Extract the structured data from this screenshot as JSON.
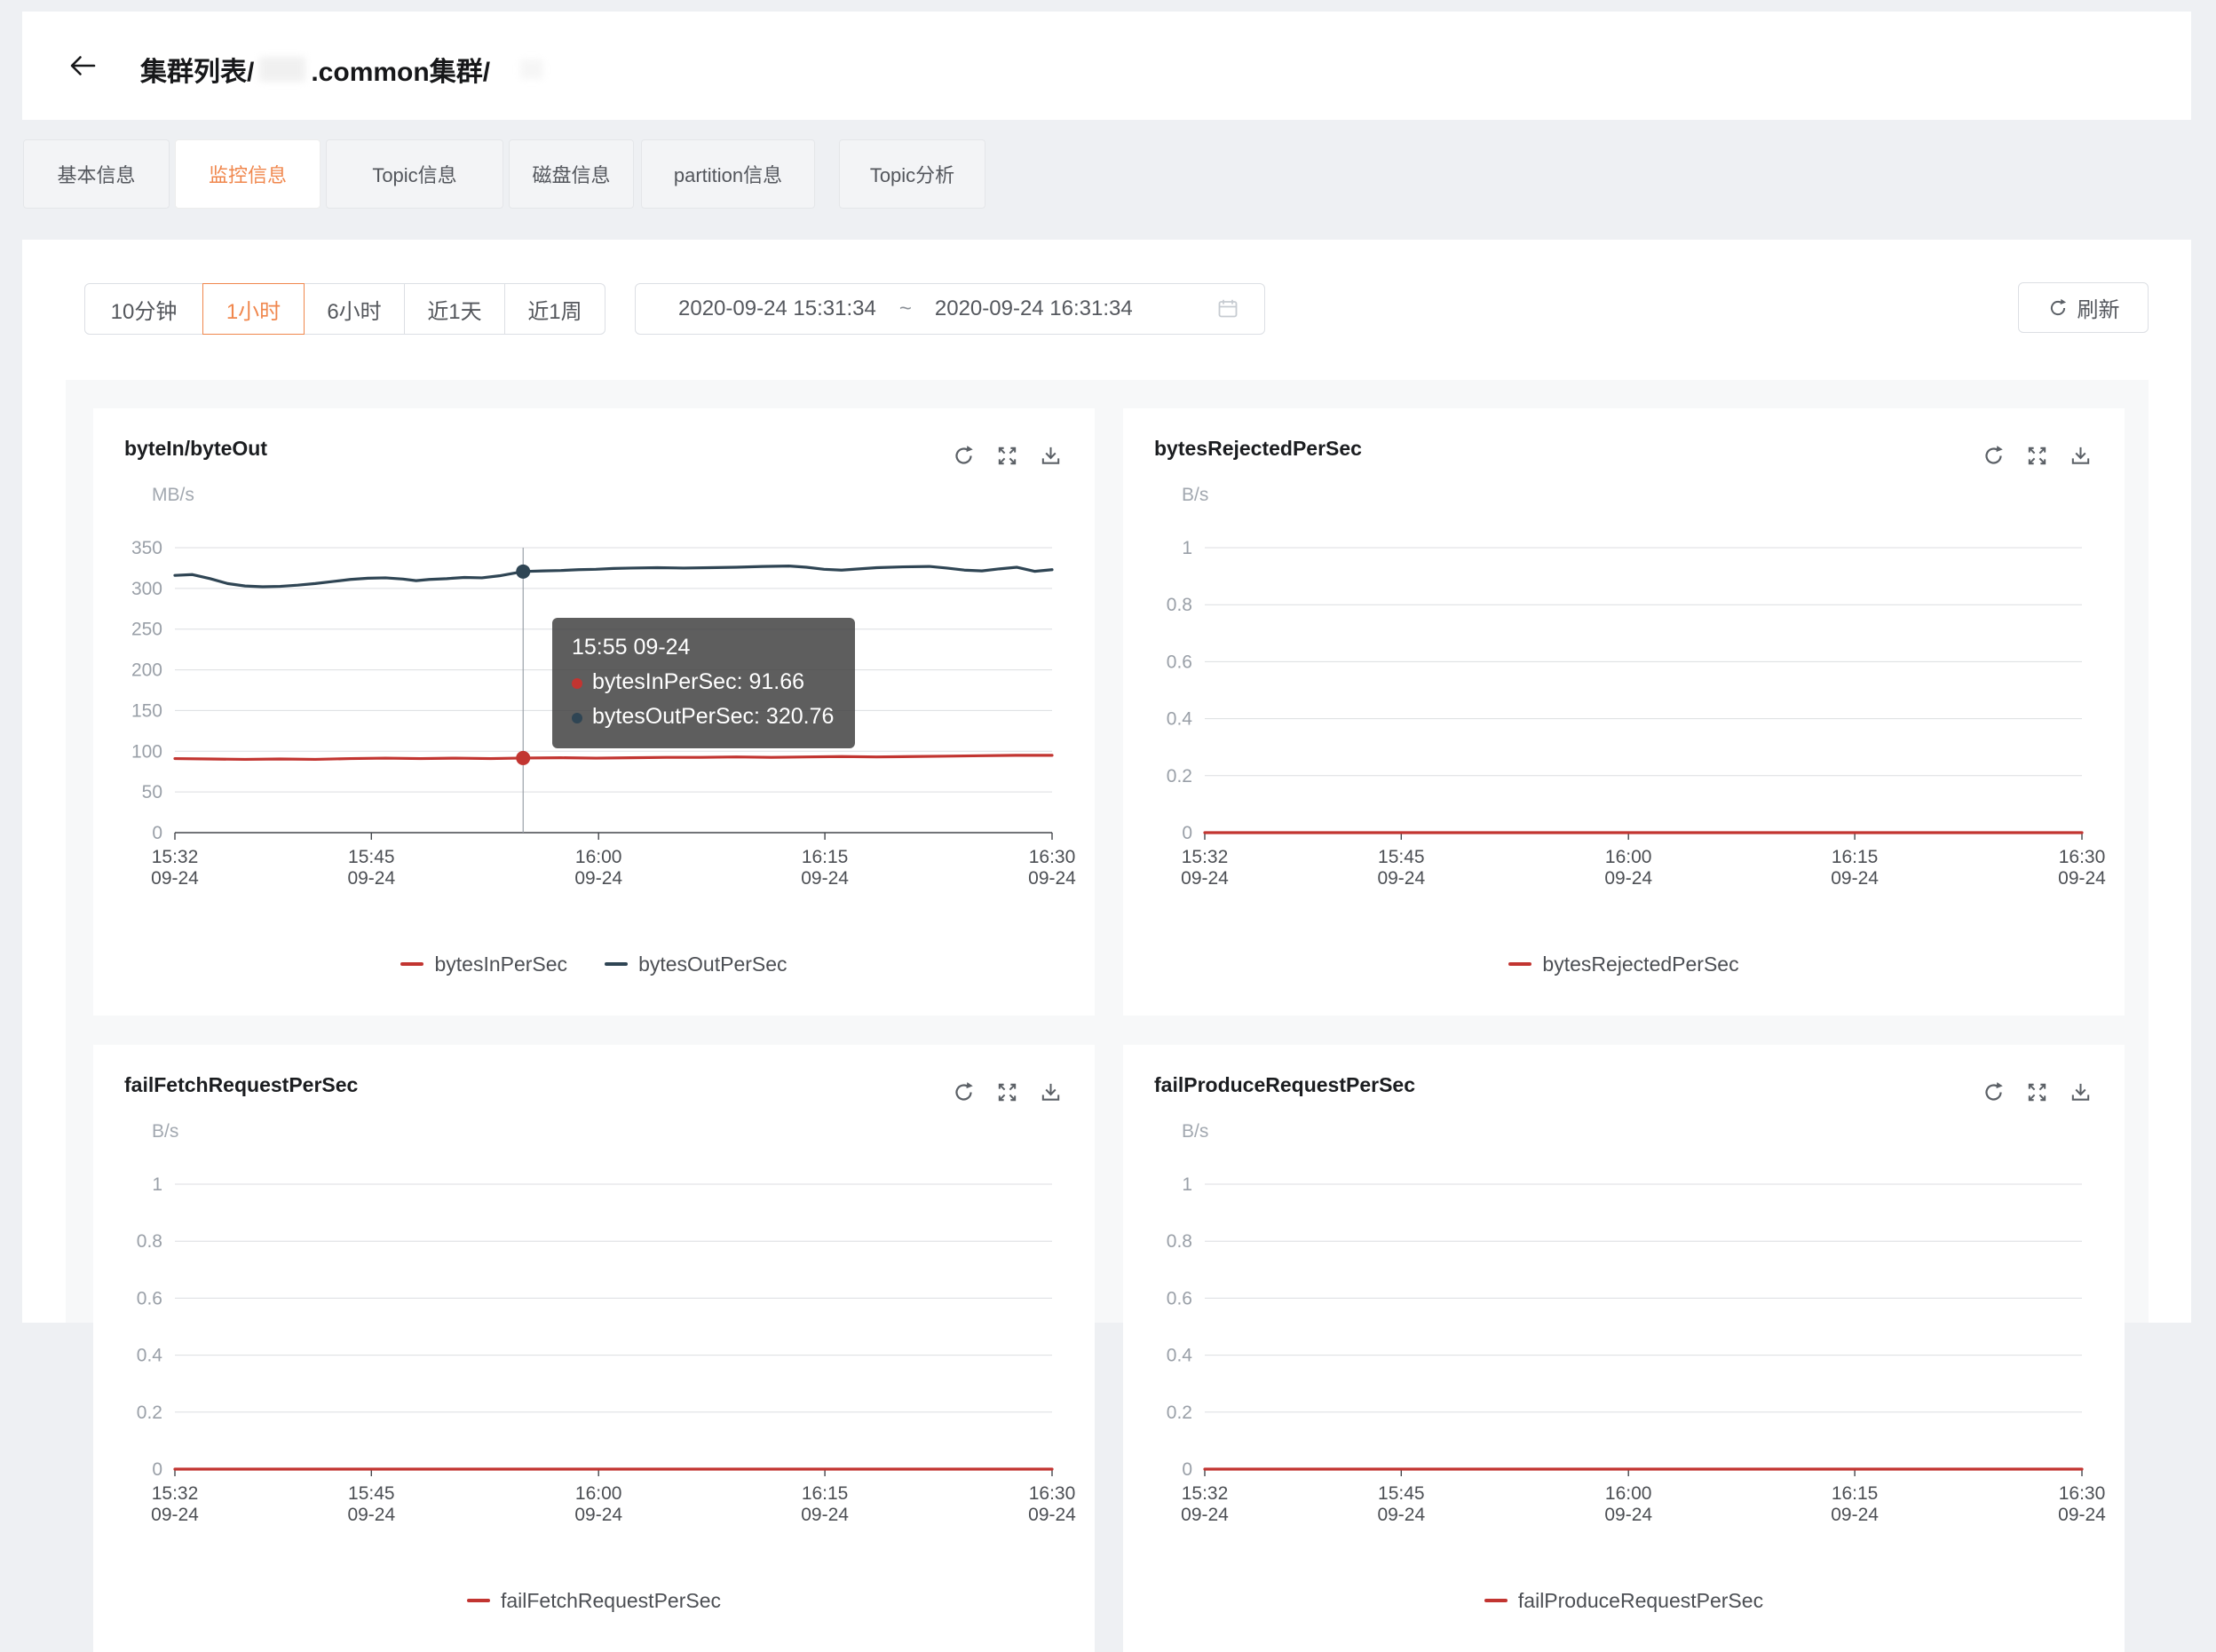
{
  "colors": {
    "accent": "#f0874d",
    "series_red": "#c23531",
    "series_dark": "#2f4554"
  },
  "header": {
    "back_icon": "arrow-left-icon",
    "breadcrumb": [
      "集群列表/",
      ".common集群/"
    ]
  },
  "tabs": [
    {
      "label": "基本信息",
      "active": false
    },
    {
      "label": "监控信息",
      "active": true
    },
    {
      "label": "Topic信息",
      "active": false
    },
    {
      "label": "磁盘信息",
      "active": false
    },
    {
      "label": "partition信息",
      "active": false
    },
    {
      "label": "Topic分析",
      "active": false
    }
  ],
  "toolbar": {
    "ranges": [
      {
        "label": "10分钟",
        "selected": false
      },
      {
        "label": "1小时",
        "selected": true
      },
      {
        "label": "6小时",
        "selected": false
      },
      {
        "label": "近1天",
        "selected": false
      },
      {
        "label": "近1周",
        "selected": false
      }
    ],
    "date_start": "2020-09-24 15:31:34",
    "date_separator": "~",
    "date_end": "2020-09-24 16:31:34",
    "calendar_icon": "calendar-icon",
    "refresh_icon": "refresh-icon",
    "refresh_label": "刷新"
  },
  "chart_data": [
    {
      "type": "line",
      "title": "byteIn/byteOut",
      "ylabel": "MB/s",
      "ylim": [
        0,
        350
      ],
      "yticks": [
        350,
        300,
        250,
        200,
        150,
        100,
        50,
        0
      ],
      "xticks": [
        {
          "time": "15:32",
          "date": "09-24",
          "f": 0
        },
        {
          "time": "15:45",
          "date": "09-24",
          "f": 22.4
        },
        {
          "time": "16:00",
          "date": "09-24",
          "f": 48.3
        },
        {
          "time": "16:15",
          "date": "09-24",
          "f": 74.1
        },
        {
          "time": "16:30",
          "date": "09-24",
          "f": 100
        }
      ],
      "series": [
        {
          "name": "bytesInPerSec",
          "color": "#c23531",
          "points": [
            [
              0,
              91
            ],
            [
              4,
              90.5
            ],
            [
              8,
              90
            ],
            [
              12,
              90.5
            ],
            [
              16,
              90
            ],
            [
              20,
              91
            ],
            [
              24,
              91.5
            ],
            [
              28,
              91
            ],
            [
              32,
              91.5
            ],
            [
              36,
              91
            ],
            [
              39.7,
              91.66
            ],
            [
              44,
              92
            ],
            [
              48,
              91.5
            ],
            [
              52,
              92
            ],
            [
              56,
              92.5
            ],
            [
              60,
              92.5
            ],
            [
              64,
              93
            ],
            [
              68,
              92.5
            ],
            [
              72,
              93
            ],
            [
              76,
              93.5
            ],
            [
              80,
              93
            ],
            [
              84,
              93.5
            ],
            [
              88,
              94
            ],
            [
              92,
              94.5
            ],
            [
              96,
              95
            ],
            [
              100,
              95
            ]
          ]
        },
        {
          "name": "bytesOutPerSec",
          "color": "#2f4554",
          "points": [
            [
              0,
              316
            ],
            [
              2,
              317
            ],
            [
              4,
              312
            ],
            [
              6,
              306
            ],
            [
              8,
              303
            ],
            [
              10,
              302
            ],
            [
              12,
              302.5
            ],
            [
              14,
              304
            ],
            [
              16,
              306
            ],
            [
              18,
              308.5
            ],
            [
              20,
              311
            ],
            [
              22,
              312.5
            ],
            [
              24,
              313
            ],
            [
              26,
              311.5
            ],
            [
              27.5,
              309.5
            ],
            [
              29,
              311
            ],
            [
              31,
              312
            ],
            [
              33,
              313.5
            ],
            [
              35,
              313
            ],
            [
              37,
              315.5
            ],
            [
              39.7,
              320.76
            ],
            [
              42,
              321.5
            ],
            [
              44,
              322
            ],
            [
              46,
              323
            ],
            [
              48,
              323.5
            ],
            [
              50,
              324.5
            ],
            [
              52,
              325
            ],
            [
              55,
              325.5
            ],
            [
              58,
              325
            ],
            [
              61,
              325.5
            ],
            [
              64,
              326
            ],
            [
              67,
              327
            ],
            [
              70,
              327.5
            ],
            [
              72,
              326
            ],
            [
              74,
              323.5
            ],
            [
              76,
              322.5
            ],
            [
              78,
              324
            ],
            [
              80,
              325.5
            ],
            [
              83,
              326.5
            ],
            [
              86,
              327
            ],
            [
              88,
              325
            ],
            [
              90,
              322.5
            ],
            [
              92,
              321.5
            ],
            [
              94,
              324
            ],
            [
              96,
              326
            ],
            [
              98,
              321
            ],
            [
              100,
              323
            ]
          ]
        }
      ],
      "legend": [
        "bytesInPerSec",
        "bytesOutPerSec"
      ],
      "tooltip": {
        "title": "15:55 09-24",
        "x_frac": 39.7,
        "rows": [
          {
            "name": "bytesInPerSec",
            "value": "91.66",
            "color": "#c23531"
          },
          {
            "name": "bytesOutPerSec",
            "value": "320.76",
            "color": "#2f4554"
          }
        ]
      }
    },
    {
      "type": "line",
      "title": "bytesRejectedPerSec",
      "ylabel": "B/s",
      "ylim": [
        0,
        1
      ],
      "yticks": [
        1,
        0.8,
        0.6,
        0.4,
        0.2,
        0
      ],
      "xticks": [
        {
          "time": "15:32",
          "date": "09-24",
          "f": 0
        },
        {
          "time": "15:45",
          "date": "09-24",
          "f": 22.4
        },
        {
          "time": "16:00",
          "date": "09-24",
          "f": 48.3
        },
        {
          "time": "16:15",
          "date": "09-24",
          "f": 74.1
        },
        {
          "time": "16:30",
          "date": "09-24",
          "f": 100
        }
      ],
      "series": [
        {
          "name": "bytesRejectedPerSec",
          "color": "#c23531",
          "points": [
            [
              0,
              0
            ],
            [
              100,
              0
            ]
          ]
        }
      ],
      "legend": [
        "bytesRejectedPerSec"
      ]
    },
    {
      "type": "line",
      "title": "failFetchRequestPerSec",
      "ylabel": "B/s",
      "ylim": [
        0,
        1
      ],
      "yticks": [
        1,
        0.8,
        0.6,
        0.4,
        0.2,
        0
      ],
      "xticks": [
        {
          "time": "15:32",
          "date": "09-24",
          "f": 0
        },
        {
          "time": "15:45",
          "date": "09-24",
          "f": 22.4
        },
        {
          "time": "16:00",
          "date": "09-24",
          "f": 48.3
        },
        {
          "time": "16:15",
          "date": "09-24",
          "f": 74.1
        },
        {
          "time": "16:30",
          "date": "09-24",
          "f": 100
        }
      ],
      "series": [
        {
          "name": "failFetchRequestPerSec",
          "color": "#c23531",
          "points": [
            [
              0,
              0
            ],
            [
              100,
              0
            ]
          ]
        }
      ],
      "legend": [
        "failFetchRequestPerSec"
      ]
    },
    {
      "type": "line",
      "title": "failProduceRequestPerSec",
      "ylabel": "B/s",
      "ylim": [
        0,
        1
      ],
      "yticks": [
        1,
        0.8,
        0.6,
        0.4,
        0.2,
        0
      ],
      "xticks": [
        {
          "time": "15:32",
          "date": "09-24",
          "f": 0
        },
        {
          "time": "15:45",
          "date": "09-24",
          "f": 22.4
        },
        {
          "time": "16:00",
          "date": "09-24",
          "f": 48.3
        },
        {
          "time": "16:15",
          "date": "09-24",
          "f": 74.1
        },
        {
          "time": "16:30",
          "date": "09-24",
          "f": 100
        }
      ],
      "series": [
        {
          "name": "failProduceRequestPerSec",
          "color": "#c23531",
          "points": [
            [
              0,
              0
            ],
            [
              100,
              0
            ]
          ]
        }
      ],
      "legend": [
        "failProduceRequestPerSec"
      ]
    }
  ]
}
